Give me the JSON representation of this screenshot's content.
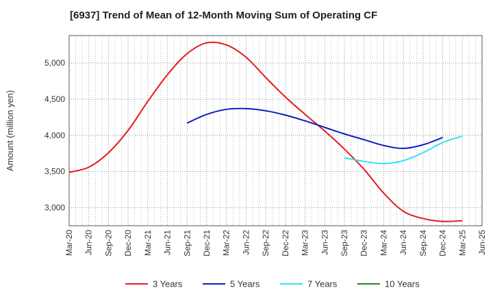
{
  "chart_data": {
    "type": "line",
    "title": "[6937]  Trend of Mean of 12-Month Moving Sum of Operating CF",
    "xlabel": "",
    "ylabel": "Amount (million yen)",
    "ylim": [
      2750,
      5380
    ],
    "yticks": [
      3000,
      3500,
      4000,
      4500,
      5000
    ],
    "ytick_labels": [
      "3,000",
      "3,500",
      "4,000",
      "4,500",
      "5,000"
    ],
    "grid": true,
    "legend_position": "bottom",
    "x_categories": [
      "Mar-20",
      "Jun-20",
      "Sep-20",
      "Dec-20",
      "Mar-21",
      "Jun-21",
      "Sep-21",
      "Dec-21",
      "Mar-22",
      "Jun-22",
      "Sep-22",
      "Dec-22",
      "Mar-23",
      "Jun-23",
      "Sep-23",
      "Dec-23",
      "Mar-24",
      "Jun-24",
      "Sep-24",
      "Dec-24",
      "Mar-25",
      "Jun-25"
    ],
    "series": [
      {
        "name": "3 Years",
        "color": "#e31a1c",
        "start_index": 0,
        "values": [
          3490,
          3560,
          3760,
          4070,
          4470,
          4840,
          5130,
          5280,
          5250,
          5080,
          4800,
          4530,
          4290,
          4060,
          3810,
          3530,
          3200,
          2950,
          2850,
          2810,
          2820
        ]
      },
      {
        "name": "5 Years",
        "color": "#0a1dc2",
        "start_index": 6,
        "values": [
          4170,
          4290,
          4360,
          4370,
          4340,
          4280,
          4200,
          4110,
          4020,
          3940,
          3860,
          3820,
          3870,
          3970
        ]
      },
      {
        "name": "7 Years",
        "color": "#33e0f2",
        "start_index": 14,
        "values": [
          3690,
          3640,
          3610,
          3650,
          3760,
          3900,
          3990
        ]
      },
      {
        "name": "10 Years",
        "color": "#1a8a1a",
        "start_index": 0,
        "values": []
      }
    ]
  }
}
